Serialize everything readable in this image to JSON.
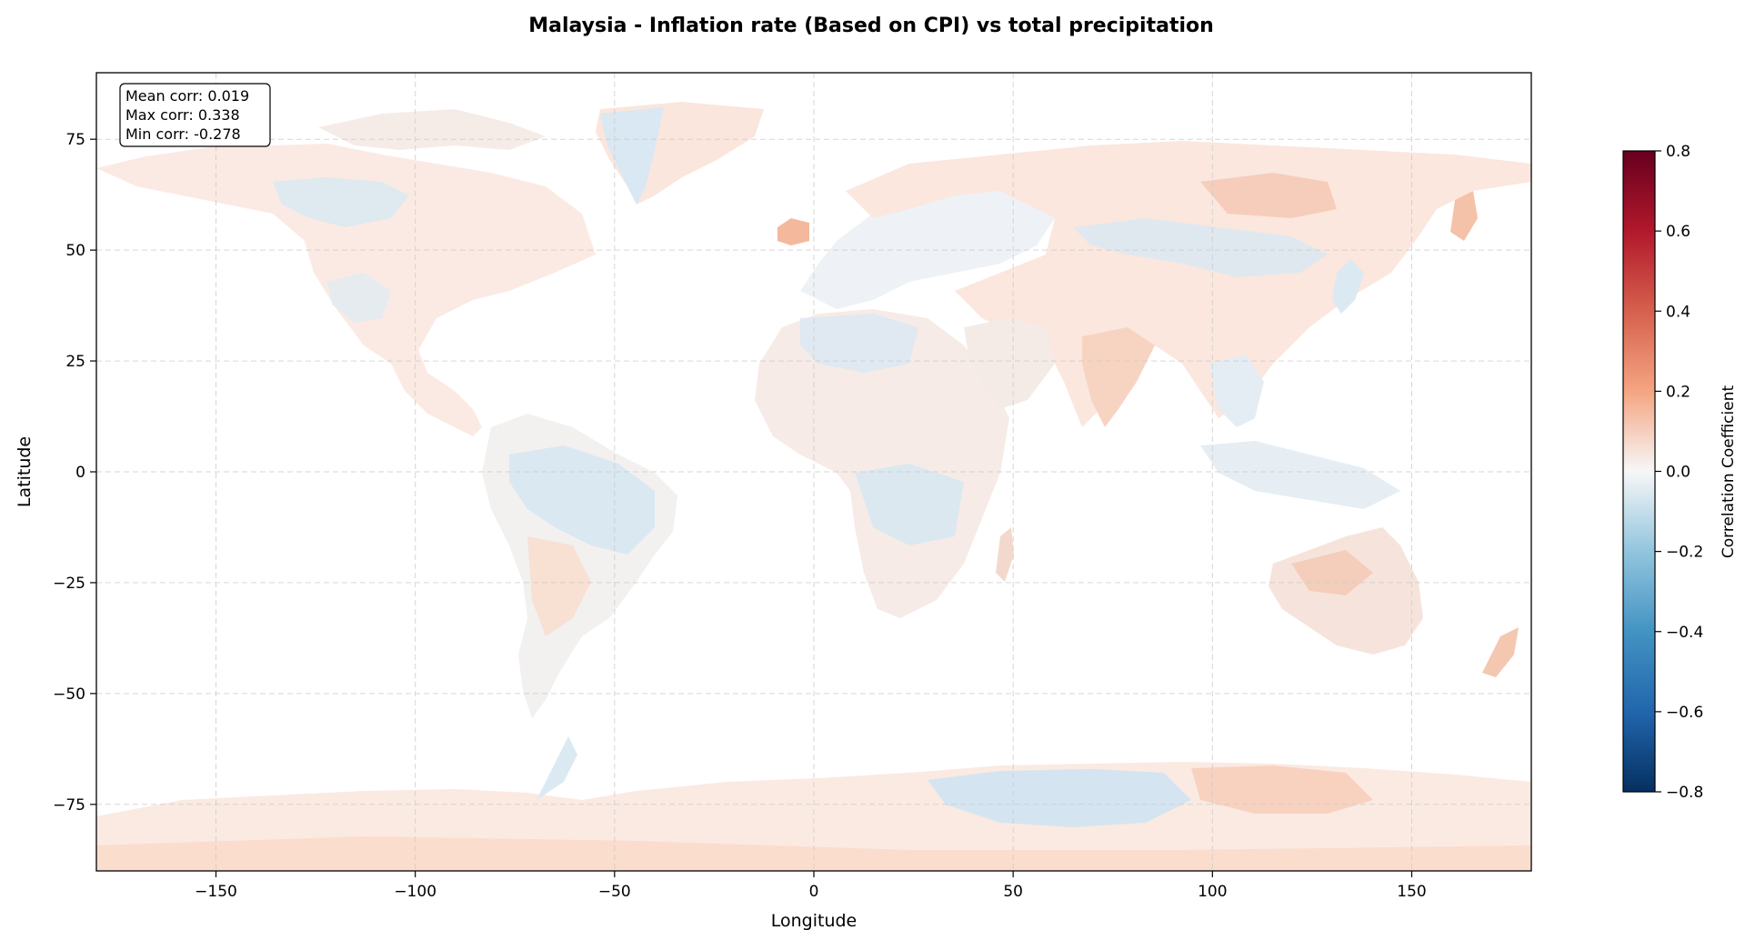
{
  "figure": {
    "title": "Malaysia - Inflation rate (Based on CPI) vs total precipitation"
  },
  "chart_data": {
    "type": "heatmap",
    "title": "Malaysia - Inflation rate (Based on CPI) vs total precipitation",
    "xlabel": "Longitude",
    "ylabel": "Latitude",
    "xlim": [
      -180,
      180
    ],
    "ylim": [
      -90,
      90
    ],
    "xticks": [
      -150,
      -100,
      -50,
      0,
      50,
      100,
      150
    ],
    "yticks": [
      75,
      50,
      25,
      0,
      -25,
      -50,
      -75
    ],
    "xtick_labels": [
      "−150",
      "−100",
      "−50",
      "0",
      "50",
      "100",
      "150"
    ],
    "ytick_labels": [
      "75",
      "50",
      "25",
      "0",
      "−25",
      "−50",
      "−75"
    ],
    "grid": true,
    "stats": {
      "mean": "Mean corr: 0.019",
      "max": "Max corr: 0.338",
      "min": "Min corr: -0.278"
    },
    "colorbar": {
      "label": "Correlation Coefficient",
      "vmin": -0.8,
      "vmax": 0.8,
      "colormap": "RdBu_r",
      "ticks": [
        0.8,
        0.6,
        0.4,
        0.2,
        0.0,
        -0.2,
        -0.4,
        -0.6,
        -0.8
      ],
      "tick_labels": [
        "0.8",
        "0.6",
        "0.4",
        "0.2",
        "0.0",
        "−0.2",
        "−0.4",
        "−0.6",
        "−0.8"
      ]
    }
  }
}
